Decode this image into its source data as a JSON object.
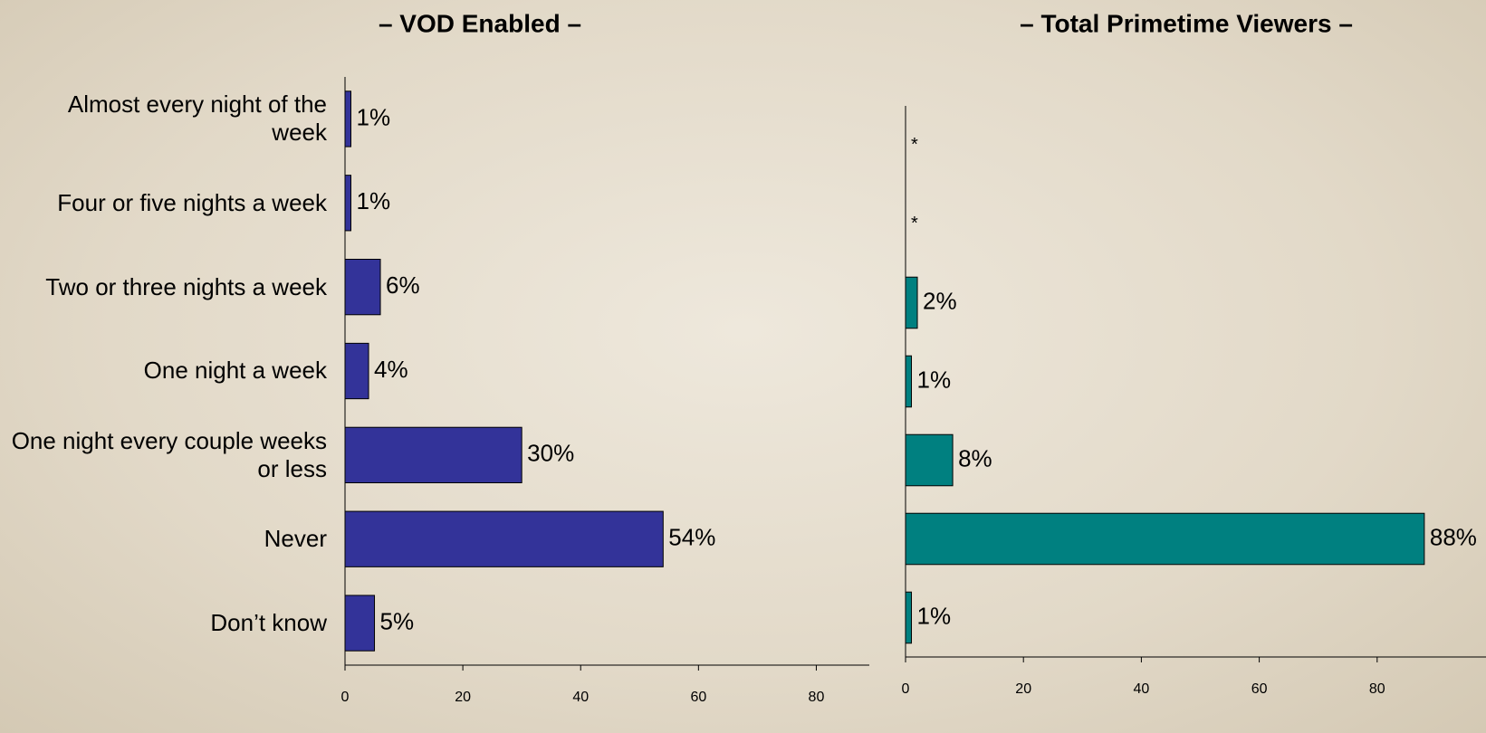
{
  "chart_data": [
    {
      "type": "hbar",
      "title": "– VOD Enabled –",
      "categories": [
        "Almost every night of the week",
        "Four or five nights a week",
        "Two or three nights a week",
        "One night a week",
        "One night every couple weeks or less",
        "Never",
        "Don’t know"
      ],
      "values": [
        1,
        1,
        6,
        4,
        30,
        54,
        5
      ],
      "value_labels": [
        "1%",
        "1%",
        "6%",
        "4%",
        "30%",
        "54%",
        "5%"
      ],
      "color": "#333399",
      "xlim": [
        0,
        89
      ],
      "xticks": [
        0,
        20,
        40,
        60,
        80
      ]
    },
    {
      "type": "hbar",
      "title": "– Total Primetime Viewers –",
      "categories": [
        null,
        null,
        null,
        null,
        null,
        null,
        null
      ],
      "values": [
        null,
        null,
        2,
        1,
        8,
        88,
        1
      ],
      "value_labels": [
        "*",
        "*",
        "2%",
        "1%",
        "8%",
        "88%",
        "1%"
      ],
      "color": "#008080",
      "xlim": [
        0,
        100
      ],
      "xticks": [
        0,
        20,
        40,
        60,
        80
      ]
    }
  ]
}
